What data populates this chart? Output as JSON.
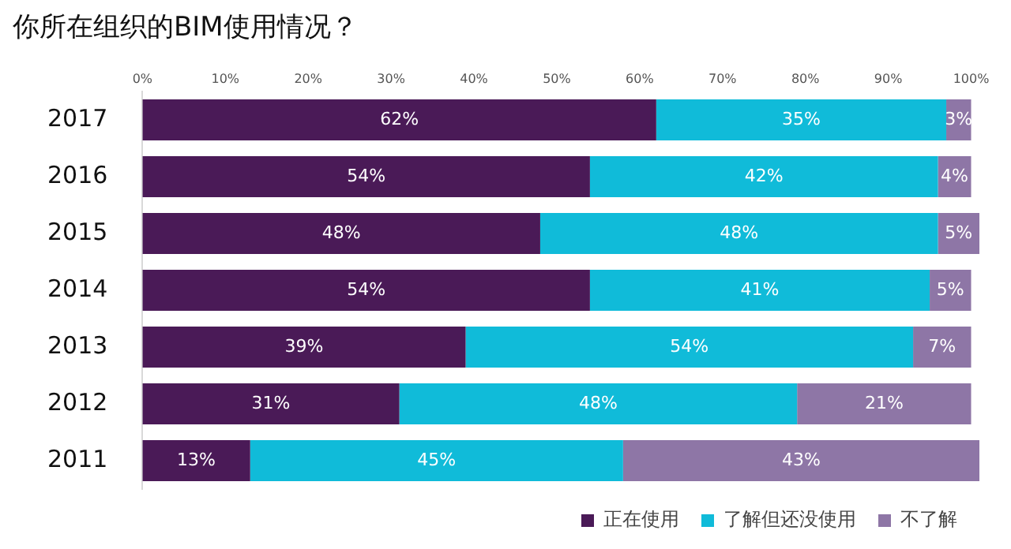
{
  "chart_data": {
    "type": "bar",
    "title": "你所在组织的BIM使用情况？",
    "orientation": "horizontal",
    "stacked": true,
    "categories": [
      "2017",
      "2016",
      "2015",
      "2014",
      "2013",
      "2012",
      "2011"
    ],
    "series": [
      {
        "name": "正在使用",
        "color": "#4a1a57",
        "values": [
          62,
          54,
          48,
          54,
          39,
          31,
          13
        ],
        "value_labels": [
          "62%",
          "54%",
          "48%",
          "54%",
          "39%",
          "31%",
          "13%"
        ]
      },
      {
        "name": "了解但还没使用",
        "color": "#10bbd9",
        "values": [
          35,
          42,
          48,
          41,
          54,
          48,
          45
        ],
        "value_labels": [
          "35%",
          "42%",
          "48%",
          "41%",
          "54%",
          "48%",
          "45%"
        ]
      },
      {
        "name": "不了解",
        "color": "#8e76a6",
        "values": [
          3,
          4,
          5,
          5,
          7,
          21,
          43
        ],
        "value_labels": [
          "3%",
          "4%",
          "5%",
          "5%",
          "7%",
          "21%",
          "43%"
        ]
      }
    ],
    "xlim": [
      0,
      101
    ],
    "xticks": [
      {
        "value": 0,
        "label": "0%"
      },
      {
        "value": 10,
        "label": "10%"
      },
      {
        "value": 20,
        "label": "20%"
      },
      {
        "value": 30,
        "label": "30%"
      },
      {
        "value": 40,
        "label": "40%"
      },
      {
        "value": 50,
        "label": "50%"
      },
      {
        "value": 60,
        "label": "60%"
      },
      {
        "value": 70,
        "label": "70%"
      },
      {
        "value": 80,
        "label": "80%"
      },
      {
        "value": 90,
        "label": "90%"
      },
      {
        "value": 100,
        "label": "100%"
      }
    ],
    "grid": false,
    "legend": "bottom right"
  }
}
